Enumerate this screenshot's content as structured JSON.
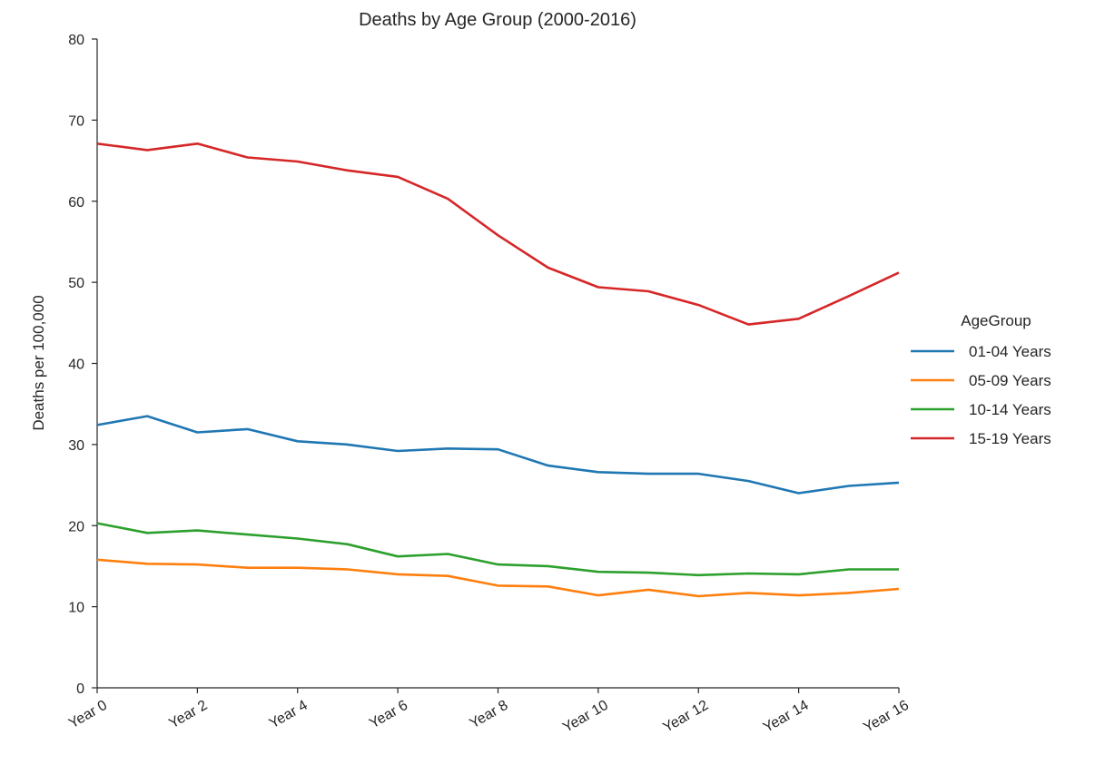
{
  "chart_data": {
    "type": "line",
    "title": "Deaths by Age Group (2000-2016)",
    "xlabel": "",
    "ylabel": "Deaths per 100,000",
    "x": [
      0,
      1,
      2,
      3,
      4,
      5,
      6,
      7,
      8,
      9,
      10,
      11,
      12,
      13,
      14,
      15,
      16
    ],
    "xlim": [
      0,
      16
    ],
    "ylim": [
      0,
      80
    ],
    "xticks": [
      {
        "value": 0,
        "label": "Year 0"
      },
      {
        "value": 2,
        "label": "Year 2"
      },
      {
        "value": 4,
        "label": "Year 4"
      },
      {
        "value": 6,
        "label": "Year 6"
      },
      {
        "value": 8,
        "label": "Year 8"
      },
      {
        "value": 10,
        "label": "Year 10"
      },
      {
        "value": 12,
        "label": "Year 12"
      },
      {
        "value": 14,
        "label": "Year 14"
      },
      {
        "value": 16,
        "label": "Year 16"
      }
    ],
    "yticks": [
      {
        "value": 0,
        "label": "0"
      },
      {
        "value": 10,
        "label": "10"
      },
      {
        "value": 20,
        "label": "20"
      },
      {
        "value": 30,
        "label": "30"
      },
      {
        "value": 40,
        "label": "40"
      },
      {
        "value": 50,
        "label": "50"
      },
      {
        "value": 60,
        "label": "60"
      },
      {
        "value": 70,
        "label": "70"
      },
      {
        "value": 80,
        "label": "80"
      }
    ],
    "grid": false,
    "legend": {
      "title": "AgeGroup",
      "placement": "right"
    },
    "series": [
      {
        "name": "01-04 Years",
        "color": "#1f77b4",
        "values": [
          32.4,
          33.5,
          31.5,
          31.9,
          30.4,
          30.0,
          29.2,
          29.5,
          29.4,
          27.4,
          26.6,
          26.4,
          26.4,
          25.5,
          24.0,
          24.9,
          25.3
        ]
      },
      {
        "name": "05-09 Years",
        "color": "#ff7f0e",
        "values": [
          15.8,
          15.3,
          15.2,
          14.8,
          14.8,
          14.6,
          14.0,
          13.8,
          12.6,
          12.5,
          11.4,
          12.1,
          11.3,
          11.7,
          11.4,
          11.7,
          12.2
        ]
      },
      {
        "name": "10-14 Years",
        "color": "#2ca02c",
        "values": [
          20.3,
          19.1,
          19.4,
          18.9,
          18.4,
          17.7,
          16.2,
          16.5,
          15.2,
          15.0,
          14.3,
          14.2,
          13.9,
          14.1,
          14.0,
          14.6,
          14.6
        ]
      },
      {
        "name": "15-19 Years",
        "color": "#d62728",
        "values": [
          67.1,
          66.3,
          67.1,
          65.4,
          64.9,
          63.8,
          63.0,
          60.3,
          55.8,
          51.8,
          49.4,
          48.9,
          47.2,
          44.8,
          45.5,
          48.3,
          51.2
        ]
      }
    ]
  }
}
